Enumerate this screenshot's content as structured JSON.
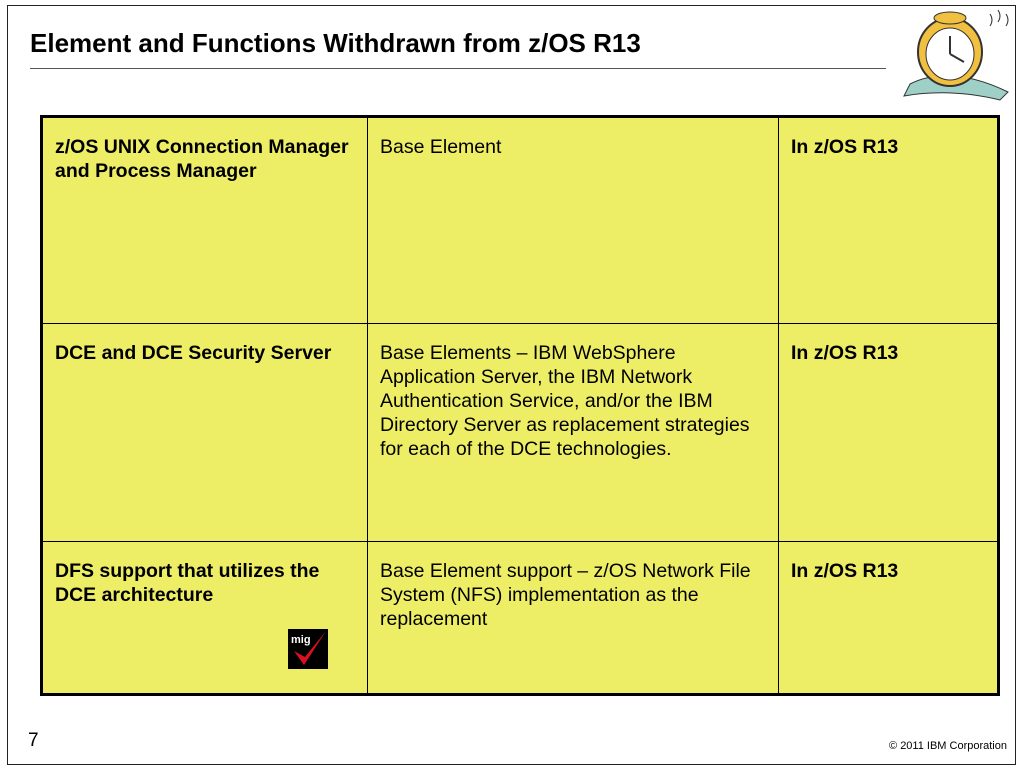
{
  "header": {
    "title": "Element and Functions Withdrawn from z/OS R13"
  },
  "table": {
    "rows": [
      [
        "z/OS UNIX Connection Manager and Process Manager",
        "Base Element",
        "In z/OS R13"
      ],
      [
        "DCE and DCE Security Server",
        "Base Elements – IBM WebSphere Application Server, the IBM Network Authentication Service, and/or the IBM Directory Server as replacement strategies for each of the DCE technologies.",
        "In z/OS R13"
      ],
      [
        "DFS support that utilizes the DCE architecture",
        "Base Element support – z/OS Network File System (NFS) implementation as the replacement",
        "In z/OS R13"
      ]
    ]
  },
  "icon": {
    "label": "mig"
  },
  "footer": {
    "page_number": "7",
    "copyright": "© 2011 IBM Corporation"
  }
}
